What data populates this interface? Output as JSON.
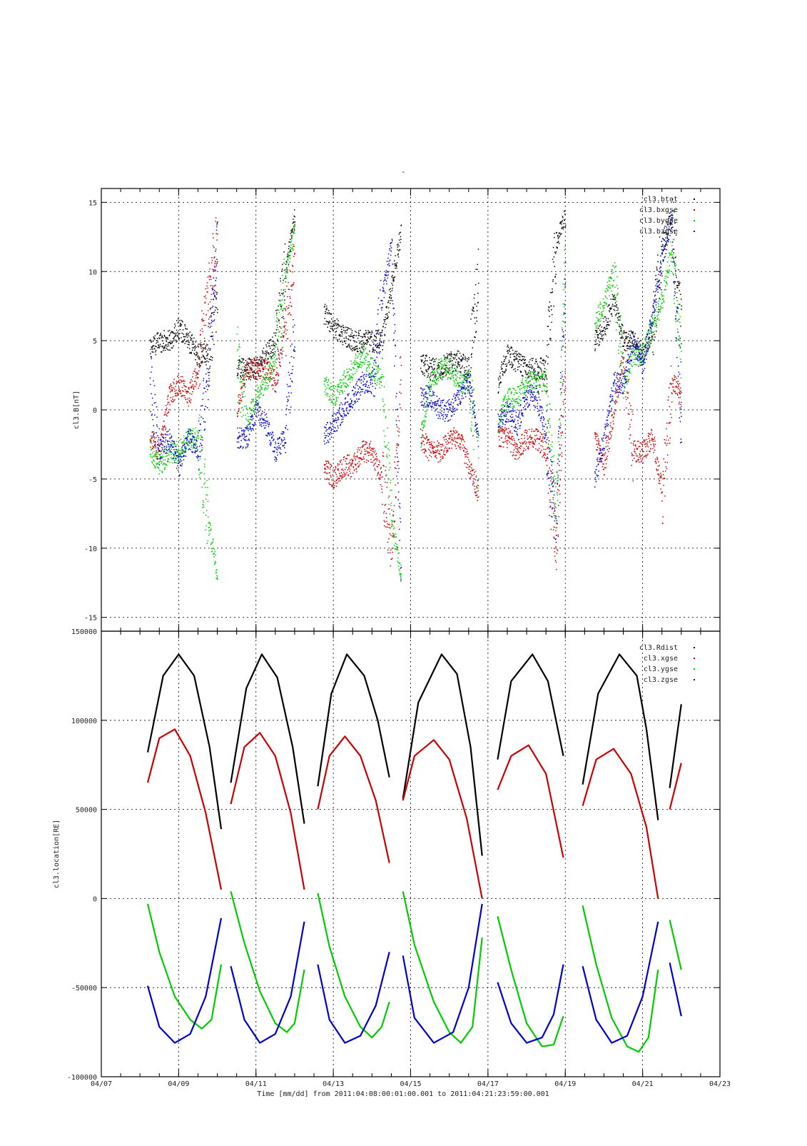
{
  "figure": {
    "title_mark": "-",
    "xlabel": "Time [mm/dd]  from 2011:04:08:00:01:00.001  to  2011:04:21:23:59:00.001",
    "x_ticks": [
      "04/07",
      "04/09",
      "04/11",
      "04/13",
      "04/15",
      "04/17",
      "04/19",
      "04/21",
      "04/23"
    ],
    "x_range_days": [
      7,
      23
    ],
    "x_axis_note": "day of April 2011; tick every 2 days, minor every 0.5 day"
  },
  "colors": {
    "black": "#000000",
    "red": "#cc0000",
    "green": "#00cc00",
    "blue": "#0000cc"
  },
  "chart_data": [
    {
      "type": "scatter",
      "ylabel": "cl3.B[nT]",
      "ylim": [
        -16,
        16
      ],
      "y_ticks": [
        -15,
        -10,
        -5,
        0,
        5,
        10,
        15
      ],
      "grid": true,
      "legend_position": "top-right",
      "series": [
        {
          "name": "cl3.btot",
          "color": "black",
          "x": [
            8.25,
            8.5,
            8.75,
            9.0,
            9.25,
            9.5,
            9.75,
            10.0,
            10.5,
            10.75,
            11.0,
            11.25,
            11.5,
            11.75,
            12.0,
            12.75,
            13.0,
            13.25,
            13.5,
            13.75,
            14.0,
            14.25,
            14.5,
            14.75,
            15.25,
            15.5,
            15.75,
            16.0,
            16.25,
            16.5,
            16.75,
            17.25,
            17.5,
            17.75,
            18.0,
            18.25,
            18.5,
            18.75,
            19.0,
            19.75,
            20.0,
            20.25,
            20.5,
            20.75,
            21.0,
            21.25,
            21.5,
            21.75,
            22.0
          ],
          "y": [
            4.5,
            5,
            5,
            6,
            5,
            4,
            4,
            9,
            3,
            3,
            3,
            4,
            5,
            10,
            14,
            7,
            6,
            5.5,
            5,
            5,
            5,
            5,
            9,
            13,
            3.5,
            3,
            3,
            3.5,
            3.5,
            3,
            10,
            2,
            4,
            3.5,
            3,
            3,
            3,
            12,
            14,
            5,
            6,
            8,
            5,
            5,
            4,
            6,
            12,
            14,
            5
          ]
        },
        {
          "name": "cl3.bxgse",
          "color": "red",
          "x": [
            8.25,
            8.5,
            8.75,
            9.0,
            9.25,
            9.5,
            9.75,
            10.0,
            10.5,
            10.75,
            11.0,
            11.25,
            11.5,
            11.75,
            12.0,
            12.75,
            13.0,
            13.25,
            13.5,
            13.75,
            14.0,
            14.25,
            14.5,
            14.75,
            15.25,
            15.5,
            15.75,
            16.0,
            16.25,
            16.5,
            16.75,
            17.25,
            17.5,
            17.75,
            18.0,
            18.25,
            18.5,
            18.75,
            19.0,
            19.75,
            20.0,
            20.25,
            20.5,
            20.75,
            21.0,
            21.25,
            21.5,
            21.75,
            22.0
          ],
          "y": [
            -2,
            -3,
            1,
            2,
            1,
            3,
            8,
            13,
            0,
            3,
            3,
            3,
            2,
            6,
            12,
            -4,
            -5,
            -4,
            -4,
            -3,
            -3,
            -5,
            -10,
            4,
            -2,
            -3,
            -3,
            -2,
            -2,
            -4,
            -6,
            -2,
            -2,
            -3,
            -2,
            -2,
            -3,
            -10,
            4,
            -2,
            -4,
            0,
            4,
            -3,
            -3,
            -2,
            -6,
            2,
            1
          ]
        },
        {
          "name": "cl3.bygse",
          "color": "green",
          "x": [
            8.25,
            8.5,
            8.75,
            9.0,
            9.25,
            9.5,
            9.75,
            10.0,
            10.5,
            10.75,
            11.0,
            11.25,
            11.5,
            11.75,
            12.0,
            12.75,
            13.0,
            13.25,
            13.5,
            13.75,
            14.0,
            14.25,
            14.5,
            14.75,
            15.25,
            15.5,
            15.75,
            16.0,
            16.25,
            16.5,
            16.75,
            17.25,
            17.5,
            17.75,
            18.0,
            18.25,
            18.5,
            18.75,
            19.0,
            19.75,
            20.0,
            20.25,
            20.5,
            20.75,
            21.0,
            21.25,
            21.5,
            21.75,
            22.0
          ],
          "y": [
            -3,
            -4,
            -3,
            -3,
            -2,
            -2,
            -8,
            -12,
            4,
            -1,
            1,
            2,
            4,
            10,
            13,
            2,
            1,
            2,
            3,
            4,
            3,
            2,
            -8,
            -12,
            -2,
            2,
            3,
            3,
            2,
            2,
            -4,
            -1,
            1,
            1,
            2,
            2,
            2,
            -8,
            12,
            6,
            8,
            10,
            2,
            4,
            4,
            6,
            8,
            12,
            3
          ]
        },
        {
          "name": "cl3.bzgse",
          "color": "blue",
          "x": [
            8.25,
            8.5,
            8.75,
            9.0,
            9.25,
            9.5,
            9.75,
            10.0,
            10.5,
            10.75,
            11.0,
            11.25,
            11.5,
            11.75,
            12.0,
            12.75,
            13.0,
            13.25,
            13.5,
            13.75,
            14.0,
            14.25,
            14.5,
            14.75,
            15.25,
            15.5,
            15.75,
            16.0,
            16.25,
            16.5,
            16.75,
            17.25,
            17.5,
            17.75,
            18.0,
            18.25,
            18.5,
            18.75,
            19.0,
            19.75,
            20.0,
            20.25,
            20.5,
            20.75,
            21.0,
            21.25,
            21.5,
            21.75,
            22.0
          ],
          "y": [
            2,
            -3,
            -2,
            -4,
            -2,
            -3,
            3,
            12,
            -2,
            -2,
            0,
            -1,
            -3,
            -2,
            6,
            -2,
            -1,
            0,
            1,
            2,
            2,
            8,
            12,
            -12,
            1,
            1,
            0,
            0,
            1,
            2,
            -2,
            -1,
            0,
            -1,
            1,
            1,
            -2,
            -8,
            10,
            -5,
            -2,
            2,
            2,
            5,
            3,
            7,
            11,
            14,
            -2
          ]
        }
      ]
    },
    {
      "type": "line",
      "ylabel": "cl3.location[RE]",
      "ylim": [
        -100000,
        150000
      ],
      "y_ticks": [
        -100000,
        -50000,
        0,
        50000,
        100000,
        150000
      ],
      "grid": true,
      "legend_position": "top-right",
      "series": [
        {
          "name": "cl3.Rdist",
          "color": "black",
          "segments": [
            {
              "x": [
                8.2,
                8.6,
                9.0,
                9.4,
                9.8,
                10.1
              ],
              "y": [
                82000,
                125000,
                137000,
                125000,
                85000,
                39000
              ]
            },
            {
              "x": [
                10.35,
                10.75,
                11.15,
                11.55,
                11.95,
                12.25
              ],
              "y": [
                65000,
                118000,
                137000,
                124000,
                85000,
                42000
              ]
            },
            {
              "x": [
                12.6,
                12.95,
                13.35,
                13.8,
                14.15,
                14.45
              ],
              "y": [
                63000,
                115000,
                137000,
                125000,
                100000,
                68000
              ]
            },
            {
              "x": [
                14.8,
                15.2,
                15.8,
                16.2,
                16.55,
                16.85
              ],
              "y": [
                56000,
                110000,
                137000,
                126000,
                85000,
                24000
              ]
            },
            {
              "x": [
                17.25,
                17.6,
                18.15,
                18.55,
                18.95
              ],
              "y": [
                78000,
                122000,
                137000,
                122000,
                80000
              ]
            },
            {
              "x": [
                19.45,
                19.85,
                20.4,
                20.85,
                21.1,
                21.4
              ],
              "y": [
                64000,
                115000,
                137000,
                125000,
                95000,
                44000
              ]
            },
            {
              "x": [
                21.7,
                22.0
              ],
              "y": [
                62000,
                109000
              ]
            }
          ]
        },
        {
          "name": "cl3.xgse",
          "color": "red",
          "segments": [
            {
              "x": [
                8.2,
                8.5,
                8.9,
                9.3,
                9.7,
                10.1
              ],
              "y": [
                65000,
                90000,
                95000,
                80000,
                48000,
                5000
              ]
            },
            {
              "x": [
                10.35,
                10.7,
                11.1,
                11.5,
                11.9,
                12.25
              ],
              "y": [
                53000,
                85000,
                93000,
                80000,
                48000,
                5000
              ]
            },
            {
              "x": [
                12.6,
                12.9,
                13.3,
                13.7,
                14.1,
                14.45
              ],
              "y": [
                50000,
                80000,
                91000,
                80000,
                55000,
                20000
              ]
            },
            {
              "x": [
                14.8,
                15.1,
                15.6,
                16.0,
                16.45,
                16.85
              ],
              "y": [
                55000,
                80000,
                89000,
                78000,
                45000,
                0
              ]
            },
            {
              "x": [
                17.25,
                17.6,
                18.05,
                18.5,
                18.95
              ],
              "y": [
                61000,
                80000,
                86000,
                70000,
                23000
              ]
            },
            {
              "x": [
                19.45,
                19.8,
                20.25,
                20.7,
                21.1,
                21.4
              ],
              "y": [
                52000,
                78000,
                84000,
                70000,
                40000,
                0
              ]
            },
            {
              "x": [
                21.7,
                22.0
              ],
              "y": [
                50000,
                76000
              ]
            }
          ]
        },
        {
          "name": "cl3.ygse",
          "color": "green",
          "segments": [
            {
              "x": [
                8.2,
                8.5,
                8.9,
                9.3,
                9.6,
                9.85,
                10.1
              ],
              "y": [
                -3000,
                -30000,
                -55000,
                -68000,
                -73000,
                -68000,
                -37000
              ]
            },
            {
              "x": [
                10.35,
                10.7,
                11.1,
                11.5,
                11.8,
                12.0,
                12.25
              ],
              "y": [
                4000,
                -25000,
                -52000,
                -70000,
                -75000,
                -70000,
                -40000
              ]
            },
            {
              "x": [
                12.6,
                12.9,
                13.3,
                13.7,
                14.0,
                14.25,
                14.45
              ],
              "y": [
                3000,
                -27000,
                -55000,
                -72000,
                -78000,
                -72000,
                -58000
              ]
            },
            {
              "x": [
                14.8,
                15.1,
                15.6,
                16.0,
                16.3,
                16.6,
                16.85
              ],
              "y": [
                4000,
                -26000,
                -58000,
                -75000,
                -81000,
                -72000,
                -22000
              ]
            },
            {
              "x": [
                17.25,
                17.6,
                18.0,
                18.4,
                18.7,
                18.95
              ],
              "y": [
                -10000,
                -40000,
                -70000,
                -83000,
                -82000,
                -66000
              ]
            },
            {
              "x": [
                19.45,
                19.8,
                20.2,
                20.6,
                20.9,
                21.15,
                21.4
              ],
              "y": [
                -4000,
                -37000,
                -67000,
                -83000,
                -86000,
                -78000,
                -40000
              ]
            },
            {
              "x": [
                21.7,
                22.0
              ],
              "y": [
                -12000,
                -40000
              ]
            }
          ]
        },
        {
          "name": "cl3.zgse",
          "color": "blue",
          "segments": [
            {
              "x": [
                8.2,
                8.5,
                8.9,
                9.3,
                9.7,
                10.1
              ],
              "y": [
                -49000,
                -72000,
                -81000,
                -76000,
                -55000,
                -11000
              ]
            },
            {
              "x": [
                10.35,
                10.7,
                11.1,
                11.5,
                11.9,
                12.25
              ],
              "y": [
                -38000,
                -68000,
                -81000,
                -76000,
                -55000,
                -13000
              ]
            },
            {
              "x": [
                12.6,
                12.9,
                13.3,
                13.7,
                14.1,
                14.45
              ],
              "y": [
                -37000,
                -68000,
                -81000,
                -77000,
                -60000,
                -30000
              ]
            },
            {
              "x": [
                14.8,
                15.1,
                15.6,
                16.1,
                16.5,
                16.85
              ],
              "y": [
                -32000,
                -67000,
                -81000,
                -75000,
                -50000,
                -3000
              ]
            },
            {
              "x": [
                17.25,
                17.6,
                18.0,
                18.4,
                18.7,
                18.95
              ],
              "y": [
                -47000,
                -70000,
                -81000,
                -78000,
                -65000,
                -37000
              ]
            },
            {
              "x": [
                19.45,
                19.8,
                20.2,
                20.6,
                21.0,
                21.4
              ],
              "y": [
                -38000,
                -68000,
                -81000,
                -77000,
                -55000,
                -13000
              ]
            },
            {
              "x": [
                21.7,
                22.0
              ],
              "y": [
                -36000,
                -66000
              ]
            }
          ]
        }
      ]
    }
  ]
}
